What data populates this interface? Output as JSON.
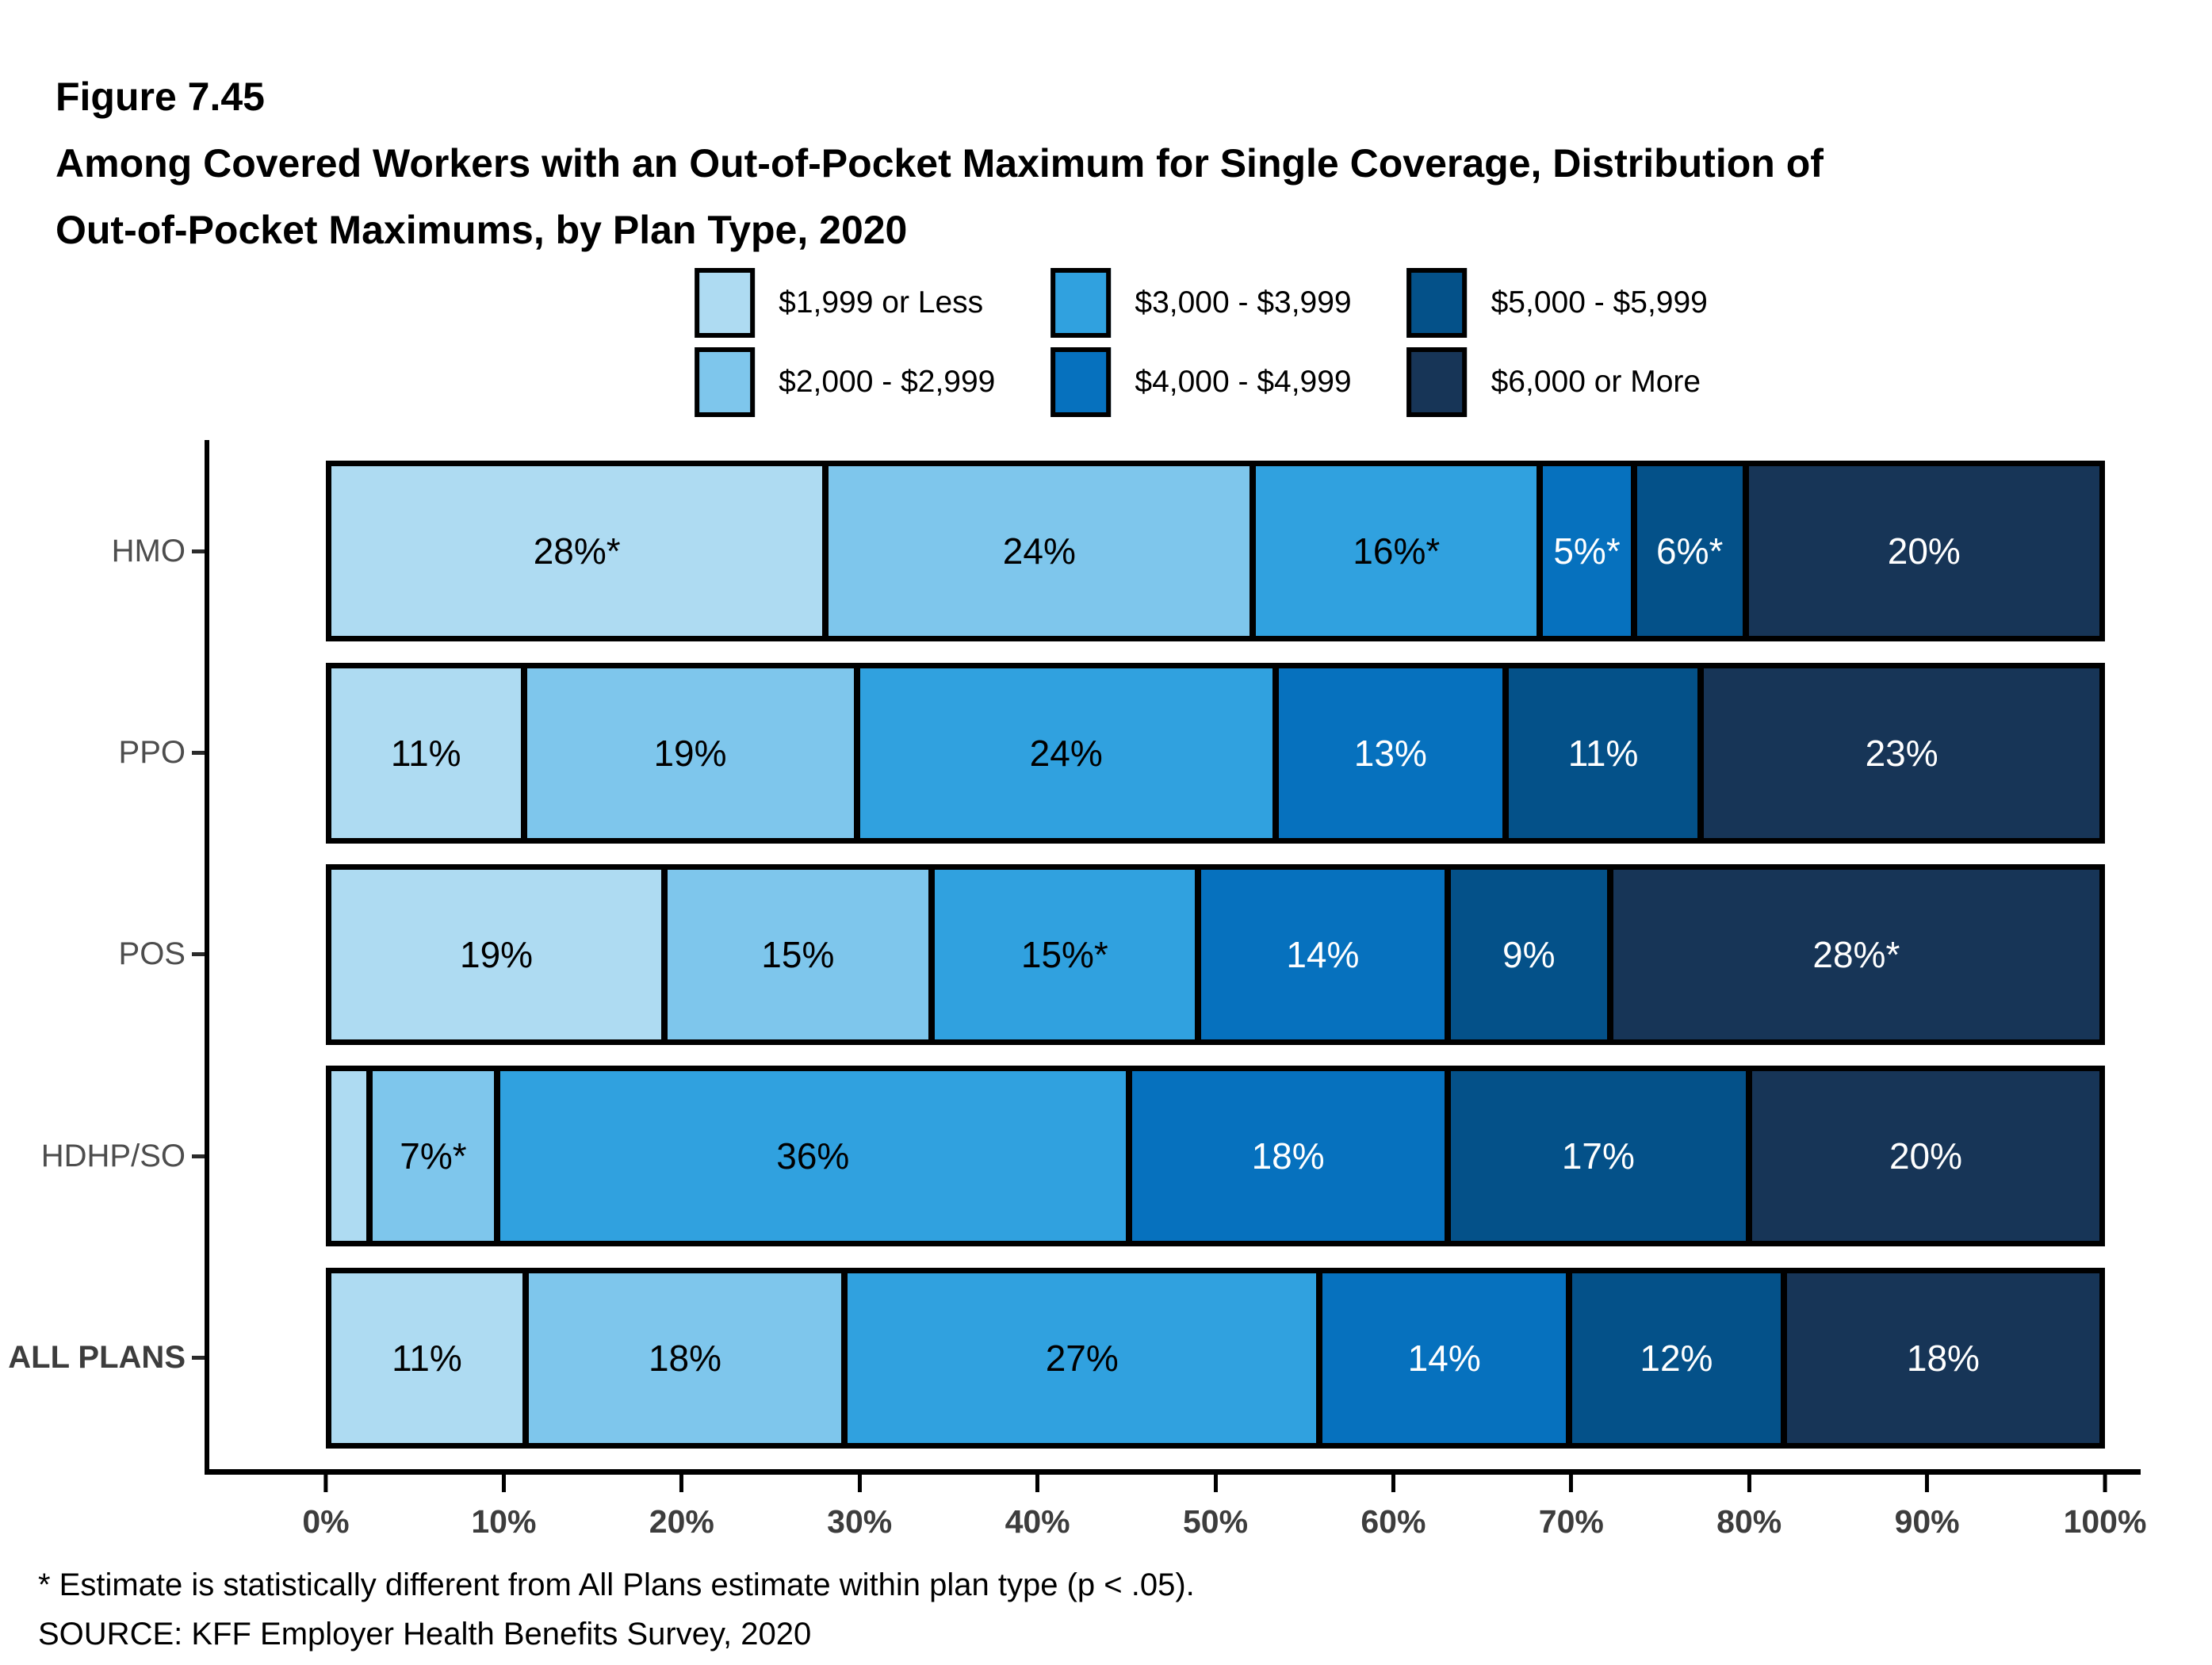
{
  "figure": {
    "number": "Figure 7.45",
    "title_line1": "Among Covered Workers with an Out-of-Pocket Maximum for Single Coverage, Distribution of",
    "title_line2": "Out-of-Pocket Maximums, by Plan Type, 2020"
  },
  "legend": {
    "items": [
      {
        "label": "$1,999 or Less",
        "color": "#AEDBF2",
        "label_text_color": "#000000"
      },
      {
        "label": "$2,000 - $2,999",
        "color": "#7EC6EC",
        "label_text_color": "#000000"
      },
      {
        "label": "$3,000 - $3,999",
        "color": "#30A1DF",
        "label_text_color": "#000000"
      },
      {
        "label": "$4,000 - $4,999",
        "color": "#0671BE",
        "label_text_color": "#FFFFFF"
      },
      {
        "label": "$5,000 - $5,999",
        "color": "#045189",
        "label_text_color": "#FFFFFF"
      },
      {
        "label": "$6,000 or More",
        "color": "#173557",
        "label_text_color": "#FFFFFF"
      }
    ]
  },
  "chart_data": {
    "type": "bar",
    "orientation": "horizontal-stacked",
    "title": "Among Covered Workers with an Out-of-Pocket Maximum for Single Coverage, Distribution of Out-of-Pocket Maximums, by Plan Type, 2020",
    "xlabel": "",
    "ylabel": "",
    "xlim": [
      0,
      100
    ],
    "x_ticks": [
      "0%",
      "10%",
      "20%",
      "30%",
      "40%",
      "50%",
      "60%",
      "70%",
      "80%",
      "90%",
      "100%"
    ],
    "grid": false,
    "legend_position": "top",
    "categories": [
      "HMO",
      "PPO",
      "POS",
      "HDHP/SO",
      "ALL PLANS"
    ],
    "series_names": [
      "$1,999 or Less",
      "$2,000 - $2,999",
      "$3,000 - $3,999",
      "$4,000 - $4,999",
      "$5,000 - $5,999",
      "$6,000 or More"
    ],
    "rows": [
      {
        "category": "HMO",
        "emphasis": false,
        "segments": [
          {
            "value": 28,
            "label": "28%*"
          },
          {
            "value": 24,
            "label": "24%"
          },
          {
            "value": 16,
            "label": "16%*"
          },
          {
            "value": 5,
            "label": "5%*"
          },
          {
            "value": 6,
            "label": "6%*"
          },
          {
            "value": 20,
            "label": "20%"
          }
        ]
      },
      {
        "category": "PPO",
        "emphasis": false,
        "segments": [
          {
            "value": 11,
            "label": "11%"
          },
          {
            "value": 19,
            "label": "19%"
          },
          {
            "value": 24,
            "label": "24%"
          },
          {
            "value": 13,
            "label": "13%"
          },
          {
            "value": 11,
            "label": "11%"
          },
          {
            "value": 23,
            "label": "23%"
          }
        ]
      },
      {
        "category": "POS",
        "emphasis": false,
        "segments": [
          {
            "value": 19,
            "label": "19%"
          },
          {
            "value": 15,
            "label": "15%"
          },
          {
            "value": 15,
            "label": "15%*"
          },
          {
            "value": 14,
            "label": "14%"
          },
          {
            "value": 9,
            "label": "9%"
          },
          {
            "value": 28,
            "label": "28%*"
          }
        ]
      },
      {
        "category": "HDHP/SO",
        "emphasis": false,
        "segments": [
          {
            "value": 2,
            "label": ""
          },
          {
            "value": 7,
            "label": "7%*"
          },
          {
            "value": 36,
            "label": "36%"
          },
          {
            "value": 18,
            "label": "18%"
          },
          {
            "value": 17,
            "label": "17%"
          },
          {
            "value": 20,
            "label": "20%"
          }
        ]
      },
      {
        "category": "ALL PLANS",
        "emphasis": true,
        "segments": [
          {
            "value": 11,
            "label": "11%"
          },
          {
            "value": 18,
            "label": "18%"
          },
          {
            "value": 27,
            "label": "27%"
          },
          {
            "value": 14,
            "label": "14%"
          },
          {
            "value": 12,
            "label": "12%"
          },
          {
            "value": 18,
            "label": "18%"
          }
        ]
      }
    ]
  },
  "footnotes": {
    "asterisk_note": "* Estimate is statistically different from All Plans estimate within plan type (p < .05).",
    "source": "SOURCE: KFF Employer Health Benefits Survey, 2020"
  }
}
